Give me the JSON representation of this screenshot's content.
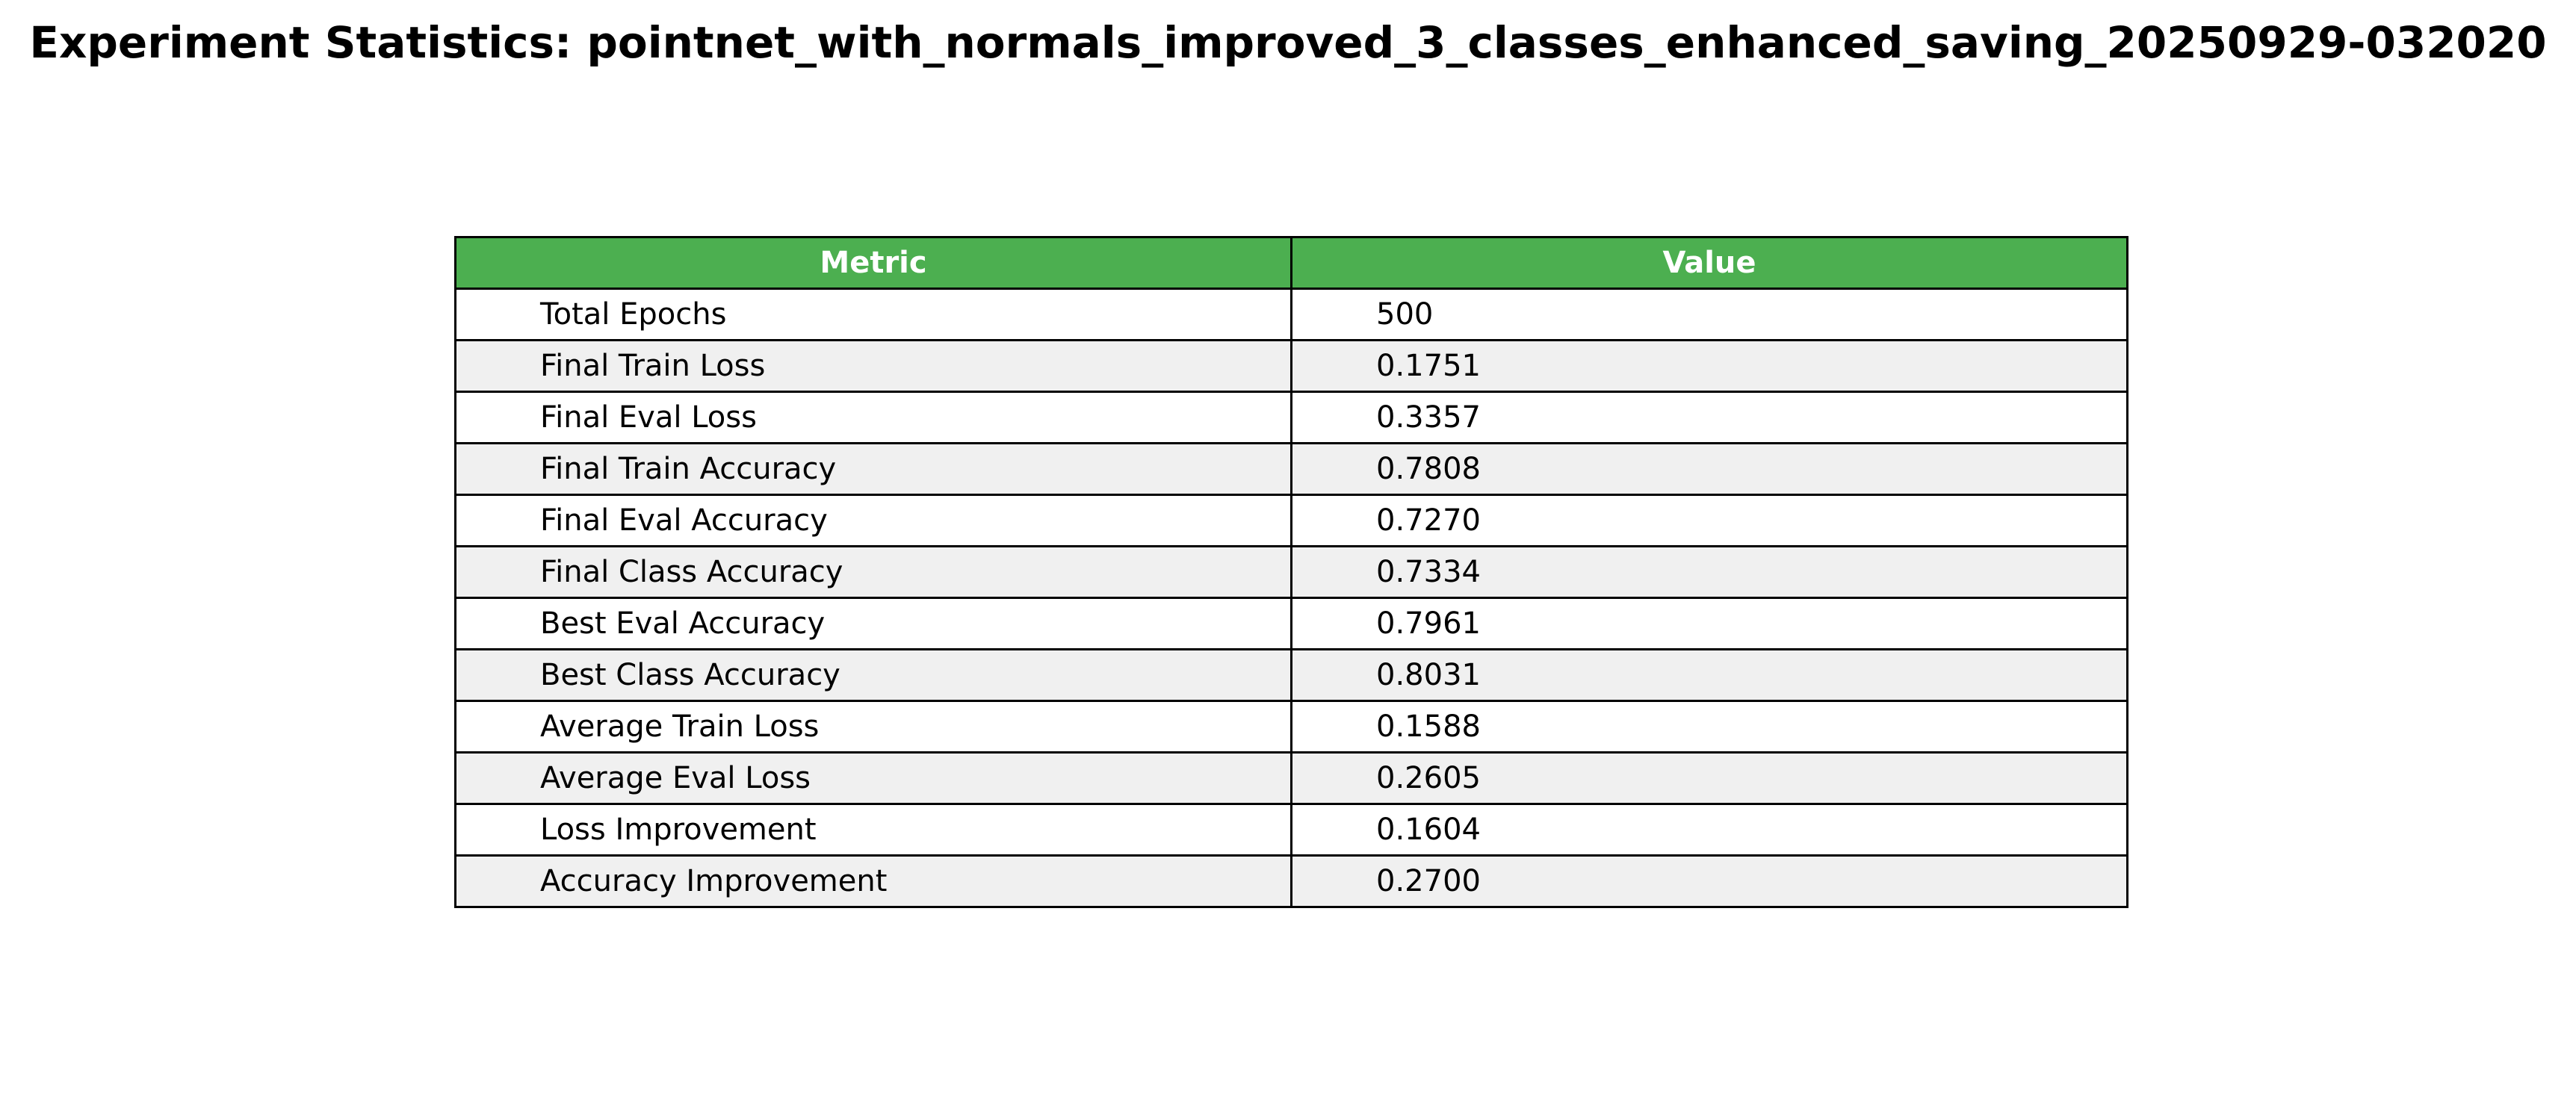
{
  "chart_data": {
    "type": "table",
    "title": "Experiment Statistics: pointnet_with_normals_improved_3_classes_enhanced_saving_20250929-032020",
    "columns": [
      "Metric",
      "Value"
    ],
    "rows": [
      [
        "Total Epochs",
        "500"
      ],
      [
        "Final Train Loss",
        "0.1751"
      ],
      [
        "Final Eval Loss",
        "0.3357"
      ],
      [
        "Final Train Accuracy",
        "0.7808"
      ],
      [
        "Final Eval Accuracy",
        "0.7270"
      ],
      [
        "Final Class Accuracy",
        "0.7334"
      ],
      [
        "Best Eval Accuracy",
        "0.7961"
      ],
      [
        "Best Class Accuracy",
        "0.8031"
      ],
      [
        "Average Train Loss",
        "0.1588"
      ],
      [
        "Average Eval Loss",
        "0.2605"
      ],
      [
        "Loss Improvement",
        "0.1604"
      ],
      [
        "Accuracy Improvement",
        "0.2700"
      ]
    ],
    "colors": {
      "header_background": "#4caf50",
      "header_text": "#ffffff",
      "row_even": "#ffffff",
      "row_odd": "#f0f0f0",
      "border": "#000000"
    }
  }
}
